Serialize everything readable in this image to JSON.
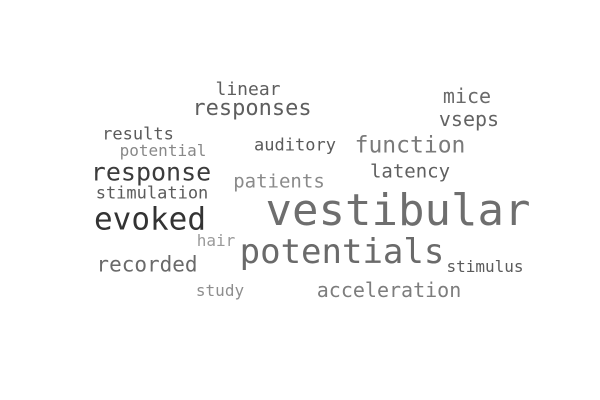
{
  "word_cloud": {
    "words": [
      {
        "text": "vestibular",
        "color": "#6e6e6e"
      },
      {
        "text": "potentials",
        "color": "#6a6a6a"
      },
      {
        "text": "evoked",
        "color": "#333333"
      },
      {
        "text": "response",
        "color": "#3c3c3c"
      },
      {
        "text": "responses",
        "color": "#5e5e5e"
      },
      {
        "text": "function",
        "color": "#7a7a7a"
      },
      {
        "text": "recorded",
        "color": "#6a6a6a"
      },
      {
        "text": "acceleration",
        "color": "#7d7d7d"
      },
      {
        "text": "vseps",
        "color": "#636363"
      },
      {
        "text": "mice",
        "color": "#6a6a6a"
      },
      {
        "text": "patients",
        "color": "#8a8a8a"
      },
      {
        "text": "latency",
        "color": "#5f5f5f"
      },
      {
        "text": "linear",
        "color": "#5e5e5e"
      },
      {
        "text": "auditory",
        "color": "#5a5a5a"
      },
      {
        "text": "results",
        "color": "#5b5b5b"
      },
      {
        "text": "stimulation",
        "color": "#5b5b5b"
      },
      {
        "text": "stimulus",
        "color": "#5b5b5b"
      },
      {
        "text": "potential",
        "color": "#888888"
      },
      {
        "text": "hair",
        "color": "#9a9a9a"
      },
      {
        "text": "study",
        "color": "#8e8e8e"
      }
    ]
  }
}
